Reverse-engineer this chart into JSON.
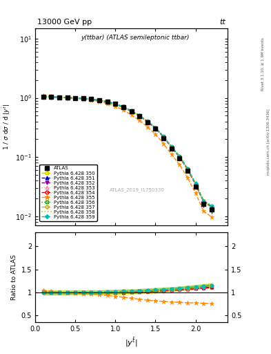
{
  "title_top": "13000 GeV pp",
  "title_right": "tt",
  "plot_title": "y(ttbar) (ATLAS semileptonic ttbar)",
  "watermark": "ATLAS_2019_I1750330",
  "rivet_label": "Rivet 3.1.10, ≥ 1.9M events",
  "mcplots_label": "mcplots.cern.ch [arXiv:1306.3436]",
  "ylabel_main": "1 / σ dσ / d |y^{tbar}|",
  "ylabel_ratio": "Ratio to ATLAS",
  "xlabel": "|y^{tbar}|",
  "xlim": [
    0,
    2.4
  ],
  "ylim_main": [
    0.007,
    15
  ],
  "ylim_ratio": [
    0.35,
    2.3
  ],
  "x_data": [
    0.1,
    0.2,
    0.3,
    0.4,
    0.5,
    0.6,
    0.7,
    0.8,
    0.9,
    1.0,
    1.1,
    1.2,
    1.3,
    1.4,
    1.5,
    1.6,
    1.7,
    1.8,
    1.9,
    2.0,
    2.1,
    2.2
  ],
  "atlas_y": [
    1.05,
    1.04,
    1.03,
    1.01,
    1.0,
    0.98,
    0.96,
    0.91,
    0.86,
    0.79,
    0.7,
    0.59,
    0.49,
    0.39,
    0.3,
    0.21,
    0.14,
    0.095,
    0.058,
    0.032,
    0.016,
    0.013
  ],
  "atlas_yerr": [
    0.04,
    0.04,
    0.04,
    0.04,
    0.04,
    0.04,
    0.04,
    0.04,
    0.03,
    0.03,
    0.03,
    0.02,
    0.02,
    0.02,
    0.01,
    0.01,
    0.01,
    0.006,
    0.004,
    0.003,
    0.002,
    0.002
  ],
  "series": [
    {
      "label": "Pythia 6.428 350",
      "color": "#cccc00",
      "marker": "s",
      "linestyle": "--",
      "linewidth": 1.0,
      "markersize": 3.5,
      "fillstyle": "none",
      "ratio_band": true,
      "band_color": "#ffff00",
      "band_alpha": 0.5,
      "ratio_y": [
        1.02,
        1.01,
        1.01,
        1.0,
        0.99,
        0.99,
        0.98,
        0.97,
        0.97,
        0.97,
        0.98,
        0.99,
        1.0,
        1.01,
        1.02,
        1.04,
        1.06,
        1.08,
        1.1,
        1.12,
        1.14,
        1.15
      ],
      "ratio_band_lo": [
        0.97,
        0.97,
        0.97,
        0.96,
        0.95,
        0.95,
        0.94,
        0.93,
        0.93,
        0.93,
        0.94,
        0.95,
        0.96,
        0.97,
        0.98,
        1.0,
        1.02,
        1.04,
        1.06,
        1.08,
        1.1,
        1.11
      ],
      "ratio_band_hi": [
        1.07,
        1.06,
        1.06,
        1.05,
        1.04,
        1.04,
        1.03,
        1.02,
        1.02,
        1.02,
        1.03,
        1.04,
        1.05,
        1.06,
        1.07,
        1.09,
        1.11,
        1.13,
        1.15,
        1.17,
        1.19,
        1.2
      ]
    },
    {
      "label": "Pythia 6.428 351",
      "color": "#0000cc",
      "marker": "^",
      "linestyle": "--",
      "linewidth": 1.0,
      "markersize": 3.5,
      "fillstyle": "full",
      "ratio_band": false,
      "ratio_y": [
        1.01,
        1.0,
        1.0,
        1.0,
        0.99,
        0.99,
        0.99,
        0.99,
        0.99,
        0.99,
        1.0,
        1.01,
        1.02,
        1.03,
        1.04,
        1.05,
        1.06,
        1.07,
        1.08,
        1.09,
        1.1,
        1.12
      ]
    },
    {
      "label": "Pythia 6.428 352",
      "color": "#880088",
      "marker": "v",
      "linestyle": "--",
      "linewidth": 1.0,
      "markersize": 3.5,
      "fillstyle": "full",
      "ratio_band": false,
      "ratio_y": [
        0.98,
        0.99,
        0.99,
        1.0,
        1.0,
        1.0,
        1.0,
        1.0,
        1.0,
        1.0,
        1.01,
        1.01,
        1.02,
        1.02,
        1.03,
        1.04,
        1.05,
        1.06,
        1.07,
        1.08,
        1.1,
        1.12
      ]
    },
    {
      "label": "Pythia 6.428 353",
      "color": "#ff88aa",
      "marker": "^",
      "linestyle": ":",
      "linewidth": 1.0,
      "markersize": 3.5,
      "fillstyle": "none",
      "ratio_band": false,
      "ratio_y": [
        0.99,
        0.99,
        0.99,
        0.99,
        0.99,
        1.0,
        1.0,
        1.0,
        1.0,
        1.01,
        1.01,
        1.02,
        1.02,
        1.03,
        1.04,
        1.05,
        1.06,
        1.07,
        1.09,
        1.1,
        1.12,
        1.14
      ]
    },
    {
      "label": "Pythia 6.428 354",
      "color": "#dd0000",
      "marker": "o",
      "linestyle": "--",
      "linewidth": 1.0,
      "markersize": 3.5,
      "fillstyle": "none",
      "ratio_band": false,
      "ratio_y": [
        1.01,
        1.01,
        1.0,
        1.0,
        1.0,
        1.0,
        1.0,
        1.0,
        1.0,
        1.0,
        1.0,
        1.01,
        1.01,
        1.01,
        1.02,
        1.03,
        1.04,
        1.05,
        1.06,
        1.08,
        1.09,
        1.1
      ]
    },
    {
      "label": "Pythia 6.428 355",
      "color": "#ff8800",
      "marker": "*",
      "linestyle": "--",
      "linewidth": 1.0,
      "markersize": 5,
      "fillstyle": "full",
      "ratio_band": false,
      "ratio_y": [
        1.04,
        1.02,
        1.0,
        0.99,
        0.98,
        0.97,
        0.96,
        0.95,
        0.93,
        0.91,
        0.89,
        0.87,
        0.85,
        0.83,
        0.81,
        0.8,
        0.79,
        0.78,
        0.77,
        0.77,
        0.76,
        0.75
      ]
    },
    {
      "label": "Pythia 6.428 356",
      "color": "#228822",
      "marker": "s",
      "linestyle": ":",
      "linewidth": 1.0,
      "markersize": 3.5,
      "fillstyle": "none",
      "ratio_band": true,
      "band_color": "#88cc44",
      "band_alpha": 0.5,
      "ratio_y": [
        0.99,
        0.99,
        0.99,
        0.99,
        1.0,
        1.0,
        1.0,
        1.0,
        1.01,
        1.01,
        1.02,
        1.02,
        1.03,
        1.04,
        1.05,
        1.06,
        1.07,
        1.08,
        1.1,
        1.11,
        1.13,
        1.15
      ],
      "ratio_band_lo": [
        0.94,
        0.94,
        0.94,
        0.94,
        0.95,
        0.95,
        0.95,
        0.95,
        0.96,
        0.96,
        0.97,
        0.97,
        0.98,
        0.99,
        1.0,
        1.01,
        1.02,
        1.03,
        1.05,
        1.06,
        1.08,
        1.1
      ],
      "ratio_band_hi": [
        1.04,
        1.04,
        1.04,
        1.04,
        1.05,
        1.05,
        1.05,
        1.05,
        1.06,
        1.06,
        1.07,
        1.07,
        1.08,
        1.09,
        1.1,
        1.11,
        1.12,
        1.13,
        1.15,
        1.16,
        1.18,
        1.2
      ]
    },
    {
      "label": "Pythia 6.428 357",
      "color": "#ccaa00",
      "marker": "D",
      "linestyle": "--",
      "linewidth": 1.0,
      "markersize": 3,
      "fillstyle": "none",
      "ratio_band": false,
      "ratio_y": [
        1.0,
        1.0,
        1.0,
        1.0,
        1.0,
        1.0,
        1.0,
        1.0,
        1.0,
        1.0,
        1.01,
        1.01,
        1.02,
        1.03,
        1.04,
        1.05,
        1.06,
        1.07,
        1.09,
        1.1,
        1.12,
        1.14
      ]
    },
    {
      "label": "Pythia 6.428 358",
      "color": "#aadd00",
      "marker": "",
      "linestyle": ":",
      "linewidth": 1.2,
      "markersize": 0,
      "fillstyle": "none",
      "ratio_band": false,
      "ratio_y": [
        0.99,
        0.99,
        0.99,
        1.0,
        1.0,
        1.0,
        1.0,
        1.0,
        1.0,
        1.01,
        1.01,
        1.02,
        1.02,
        1.03,
        1.04,
        1.05,
        1.06,
        1.08,
        1.09,
        1.11,
        1.12,
        1.14
      ]
    },
    {
      "label": "Pythia 6.428 359",
      "color": "#00bbbb",
      "marker": "D",
      "linestyle": "--",
      "linewidth": 1.0,
      "markersize": 3,
      "fillstyle": "full",
      "ratio_band": false,
      "ratio_y": [
        0.99,
        0.99,
        0.99,
        0.99,
        1.0,
        1.0,
        1.0,
        1.0,
        1.01,
        1.01,
        1.02,
        1.02,
        1.03,
        1.04,
        1.05,
        1.06,
        1.07,
        1.09,
        1.1,
        1.12,
        1.13,
        1.15
      ]
    }
  ]
}
